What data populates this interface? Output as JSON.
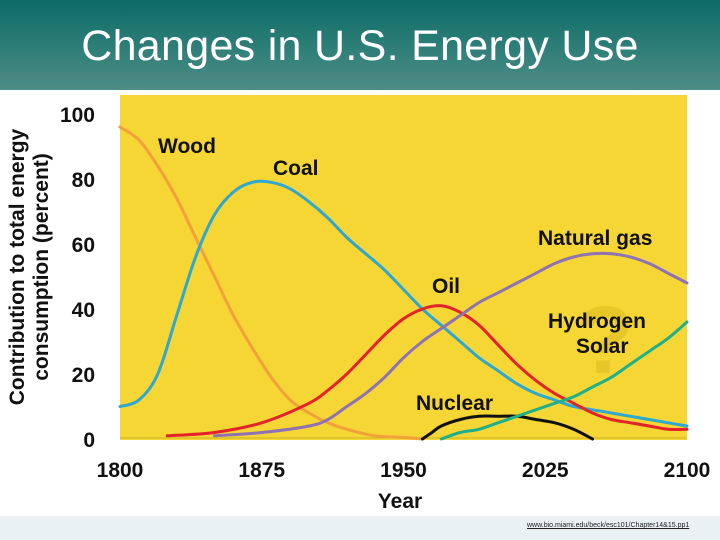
{
  "title": "Changes in U.S. Energy Use",
  "footer": {
    "source_url": "www.bio.miami.edu/beck/esc101/Chapter14&15.pp1"
  },
  "chart_data": {
    "type": "line",
    "xlabel": "Year",
    "ylabel": "Contribution to total energy consumption (percent)",
    "xlim": [
      1800,
      2100
    ],
    "ylim": [
      0,
      100
    ],
    "x_ticks": [
      1800,
      1875,
      1950,
      2025,
      2100
    ],
    "y_ticks": [
      0,
      20,
      40,
      60,
      80,
      100
    ],
    "grid": false,
    "plot_background": "#f5d634",
    "series": [
      {
        "name": "Wood",
        "color": "#f2a13a",
        "x": [
          1800,
          1810,
          1820,
          1830,
          1840,
          1850,
          1860,
          1870,
          1880,
          1890,
          1900,
          1910,
          1920,
          1935,
          1950,
          1960
        ],
        "y": [
          96,
          92,
          84,
          74,
          62,
          50,
          38,
          28,
          19,
          12,
          8,
          5,
          3,
          1,
          0.5,
          0
        ]
      },
      {
        "name": "Coal",
        "color": "#2ea8d0",
        "x": [
          1800,
          1810,
          1820,
          1830,
          1840,
          1850,
          1860,
          1870,
          1880,
          1890,
          1900,
          1910,
          1920,
          1930,
          1940,
          1950,
          1960,
          1970,
          1980,
          1990,
          2000,
          2010,
          2020,
          2030,
          2040,
          2050,
          2060,
          2070,
          2080,
          2090,
          2100
        ],
        "y": [
          10,
          12,
          20,
          38,
          56,
          69,
          76,
          79,
          79,
          77,
          73,
          68,
          62,
          57,
          52,
          46,
          40,
          35,
          30,
          25,
          21,
          17,
          14,
          12,
          10,
          9,
          8,
          7,
          6,
          5,
          4
        ]
      },
      {
        "name": "Oil",
        "color": "#e3222b",
        "x": [
          1825,
          1850,
          1875,
          1900,
          1910,
          1920,
          1930,
          1940,
          1950,
          1960,
          1970,
          1980,
          1990,
          2000,
          2010,
          2020,
          2030,
          2040,
          2050,
          2060,
          2070,
          2080,
          2090,
          2100
        ],
        "y": [
          1,
          2,
          5,
          11,
          15,
          20,
          26,
          32,
          37,
          40,
          41,
          39,
          35,
          29,
          23,
          18,
          14,
          11,
          8,
          6,
          5,
          4,
          3,
          3
        ]
      },
      {
        "name": "Natural gas",
        "color": "#8e72b4",
        "x": [
          1850,
          1875,
          1900,
          1910,
          1920,
          1930,
          1940,
          1950,
          1960,
          1970,
          1980,
          1990,
          2000,
          2010,
          2020,
          2030,
          2040,
          2050,
          2060,
          2070,
          2080,
          2090,
          2100
        ],
        "y": [
          1,
          2,
          4,
          6,
          10,
          14,
          19,
          25,
          30,
          34,
          38,
          42,
          45,
          48,
          51,
          54,
          56,
          57,
          57,
          56,
          54,
          51,
          48
        ]
      },
      {
        "name": "Nuclear",
        "color": "#111111",
        "x": [
          1960,
          1965,
          1970,
          1980,
          1990,
          2000,
          2010,
          2020,
          2030,
          2040,
          2050
        ],
        "y": [
          0,
          2,
          4,
          6,
          7,
          7,
          7,
          6,
          5,
          3,
          0
        ]
      },
      {
        "name": "Hydrogen Solar",
        "color": "#1fb08a",
        "x": [
          1970,
          1980,
          1990,
          2000,
          2010,
          2020,
          2030,
          2040,
          2050,
          2060,
          2070,
          2080,
          2090,
          2100
        ],
        "y": [
          0,
          2,
          3,
          5,
          7,
          9,
          11,
          13,
          16,
          19,
          23,
          27,
          31,
          36
        ]
      }
    ],
    "annotations": [
      "Wood",
      "Coal",
      "Oil",
      "Natural gas",
      "Nuclear",
      "Hydrogen",
      "Solar",
      "?"
    ]
  }
}
